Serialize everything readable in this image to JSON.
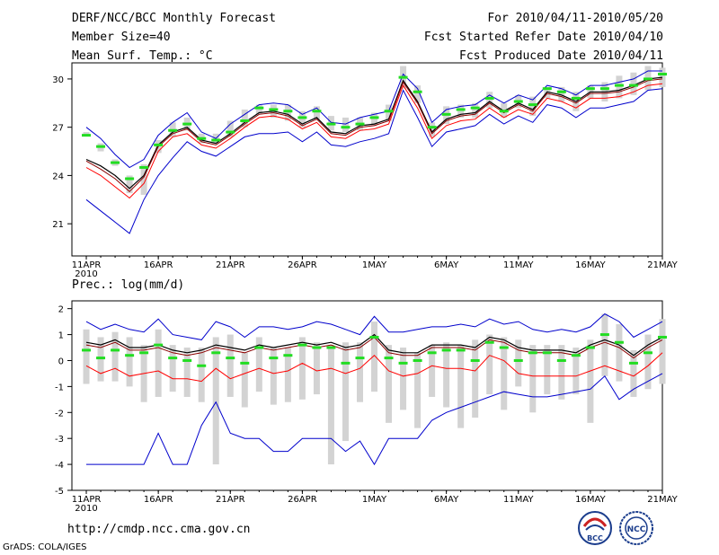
{
  "header": {
    "title": "DERF/NCC/BCC Monthly Forecast",
    "member_size": "Member Size=40",
    "variable": "Mean Surf. Temp.: °C",
    "period": "For 2010/04/11-2010/05/20",
    "fcst_started": "Fcst Started Refer Date 2010/04/10",
    "fcst_produced": "Fcst Produced Date 2010/04/11"
  },
  "precip_label": "Prec.: log(mm/d)",
  "url": "http://cmdp.ncc.cma.gov.cn",
  "credit": "GrADS: COLA/IGES",
  "logos": {
    "left": "BCC",
    "right": "NCC"
  },
  "colors": {
    "envelope": "#0000cc",
    "ensemble_mean": "#000000",
    "median": "#8b0000",
    "lower": "#ff0000",
    "marker": "#22dd22",
    "box": "#d3d3d3"
  },
  "chart_data": [
    {
      "type": "line",
      "title": "Mean Surf. Temp.",
      "ylabel": "°C",
      "ylim": [
        19,
        31
      ],
      "yticks": [
        21,
        24,
        27,
        30
      ],
      "xticks": [
        {
          "day": 0,
          "label": "11APR",
          "sub": "2010"
        },
        {
          "day": 5,
          "label": "16APR"
        },
        {
          "day": 10,
          "label": "21APR"
        },
        {
          "day": 15,
          "label": "26APR"
        },
        {
          "day": 20,
          "label": "1MAY"
        },
        {
          "day": 25,
          "label": "6MAY"
        },
        {
          "day": 30,
          "label": "11MAY"
        },
        {
          "day": 35,
          "label": "16MAY"
        },
        {
          "day": 40,
          "label": "21MAY"
        }
      ],
      "xlim": [
        -1,
        40
      ],
      "series": [
        {
          "name": "max",
          "values": [
            27.0,
            26.3,
            25.3,
            24.5,
            25.0,
            26.5,
            27.3,
            27.9,
            26.7,
            26.3,
            27.2,
            27.8,
            28.4,
            28.5,
            28.4,
            27.8,
            28.2,
            27.3,
            27.2,
            27.6,
            27.8,
            28.0,
            30.3,
            29.4,
            27.3,
            28.1,
            28.3,
            28.4,
            29.0,
            28.5,
            29.0,
            28.7,
            29.6,
            29.4,
            29.0,
            29.6,
            29.6,
            29.8,
            30.0,
            30.5,
            30.5
          ]
        },
        {
          "name": "mean",
          "values": [
            25.0,
            24.6,
            24.0,
            23.2,
            24.0,
            25.9,
            26.7,
            27.0,
            26.2,
            26.0,
            26.6,
            27.3,
            27.9,
            28.0,
            27.8,
            27.2,
            27.6,
            26.7,
            26.6,
            27.1,
            27.2,
            27.5,
            29.9,
            28.6,
            26.7,
            27.5,
            27.8,
            27.9,
            28.6,
            28.0,
            28.5,
            28.1,
            29.2,
            29.0,
            28.6,
            29.2,
            29.2,
            29.3,
            29.6,
            30.0,
            30.1
          ]
        },
        {
          "name": "median",
          "values": [
            24.9,
            24.4,
            23.8,
            23.0,
            23.9,
            25.8,
            26.6,
            26.9,
            26.1,
            25.9,
            26.5,
            27.2,
            27.8,
            27.9,
            27.7,
            27.1,
            27.5,
            26.6,
            26.5,
            27.0,
            27.1,
            27.4,
            29.8,
            28.5,
            26.6,
            27.4,
            27.7,
            27.8,
            28.5,
            27.9,
            28.4,
            28.0,
            29.1,
            28.9,
            28.5,
            29.1,
            29.1,
            29.2,
            29.5,
            29.9,
            30.0
          ]
        },
        {
          "name": "lower",
          "values": [
            24.5,
            24.0,
            23.3,
            22.6,
            23.5,
            25.5,
            26.4,
            26.6,
            25.9,
            25.7,
            26.3,
            27.0,
            27.6,
            27.7,
            27.5,
            26.9,
            27.3,
            26.4,
            26.3,
            26.8,
            26.9,
            27.2,
            29.6,
            28.2,
            26.3,
            27.1,
            27.4,
            27.5,
            28.2,
            27.6,
            28.1,
            27.8,
            28.8,
            28.6,
            28.2,
            28.8,
            28.8,
            28.9,
            29.2,
            29.6,
            29.7
          ]
        },
        {
          "name": "min",
          "values": [
            22.5,
            21.8,
            21.1,
            20.4,
            22.5,
            24.0,
            25.1,
            26.1,
            25.5,
            25.2,
            25.8,
            26.4,
            26.6,
            26.6,
            26.7,
            26.1,
            26.7,
            25.9,
            25.8,
            26.1,
            26.3,
            26.6,
            29.3,
            27.6,
            25.8,
            26.7,
            26.9,
            27.1,
            27.8,
            27.2,
            27.7,
            27.3,
            28.4,
            28.2,
            27.6,
            28.2,
            28.2,
            28.4,
            28.6,
            29.3,
            29.4
          ]
        },
        {
          "name": "markers",
          "values": [
            26.5,
            25.8,
            24.8,
            23.8,
            24.5,
            25.9,
            26.8,
            27.2,
            26.3,
            26.2,
            26.7,
            27.4,
            28.2,
            28.1,
            28.0,
            27.6,
            28.0,
            27.2,
            27.0,
            27.2,
            27.6,
            28.0,
            30.1,
            29.2,
            27.0,
            27.8,
            28.1,
            28.2,
            28.8,
            28.0,
            28.6,
            28.4,
            29.4,
            29.2,
            28.8,
            29.4,
            29.4,
            29.6,
            29.6,
            30.0,
            30.3
          ]
        }
      ],
      "boxes": [
        [
          26.5,
          26.7
        ],
        [
          25.5,
          26.0
        ],
        [
          24.6,
          25.0
        ],
        [
          22.9,
          24.0
        ],
        [
          22.8,
          24.7
        ],
        [
          25.4,
          26.2
        ],
        [
          26.4,
          27.3
        ],
        [
          26.8,
          27.6
        ],
        [
          26.0,
          26.6
        ],
        [
          26.0,
          26.6
        ],
        [
          26.4,
          27.4
        ],
        [
          27.0,
          28.1
        ],
        [
          27.8,
          28.4
        ],
        [
          27.6,
          28.4
        ],
        [
          27.4,
          28.4
        ],
        [
          27.0,
          28.0
        ],
        [
          27.5,
          28.3
        ],
        [
          26.8,
          27.7
        ],
        [
          26.7,
          27.6
        ],
        [
          26.8,
          27.6
        ],
        [
          27.1,
          27.9
        ],
        [
          27.4,
          28.4
        ],
        [
          29.4,
          30.8
        ],
        [
          28.5,
          29.6
        ],
        [
          26.4,
          27.3
        ],
        [
          27.2,
          28.3
        ],
        [
          27.6,
          28.4
        ],
        [
          27.6,
          28.5
        ],
        [
          28.2,
          29.2
        ],
        [
          27.6,
          28.5
        ],
        [
          28.2,
          29.0
        ],
        [
          27.7,
          28.9
        ],
        [
          28.8,
          29.5
        ],
        [
          28.6,
          29.5
        ],
        [
          28.0,
          29.2
        ],
        [
          28.8,
          29.6
        ],
        [
          28.6,
          29.8
        ],
        [
          28.8,
          30.2
        ],
        [
          29.0,
          30.4
        ],
        [
          29.3,
          30.8
        ],
        [
          29.5,
          30.7
        ]
      ]
    },
    {
      "type": "line",
      "title": "Prec.: log(mm/d)",
      "ylim": [
        -5,
        2.3
      ],
      "yticks": [
        -5,
        -4,
        -3,
        -2,
        -1,
        0,
        1,
        2
      ],
      "xticks": [
        {
          "day": 0,
          "label": "11APR",
          "sub": "2010"
        },
        {
          "day": 5,
          "label": "16APR"
        },
        {
          "day": 10,
          "label": "21APR"
        },
        {
          "day": 15,
          "label": "26APR"
        },
        {
          "day": 20,
          "label": "1MAY"
        },
        {
          "day": 25,
          "label": "6MAY"
        },
        {
          "day": 30,
          "label": "11MAY"
        },
        {
          "day": 35,
          "label": "16MAY"
        },
        {
          "day": 40,
          "label": "21MAY"
        }
      ],
      "xlim": [
        -1,
        40
      ],
      "series": [
        {
          "name": "max",
          "values": [
            1.5,
            1.2,
            1.4,
            1.2,
            1.1,
            1.6,
            1.0,
            0.9,
            0.8,
            1.5,
            1.3,
            0.9,
            1.3,
            1.3,
            1.2,
            1.3,
            1.5,
            1.4,
            1.2,
            1.0,
            1.7,
            1.1,
            1.1,
            1.2,
            1.3,
            1.3,
            1.4,
            1.3,
            1.6,
            1.4,
            1.5,
            1.2,
            1.1,
            1.2,
            1.1,
            1.3,
            1.8,
            1.5,
            0.9,
            1.2,
            1.5
          ]
        },
        {
          "name": "mean",
          "values": [
            0.7,
            0.6,
            0.8,
            0.5,
            0.5,
            0.6,
            0.4,
            0.3,
            0.4,
            0.6,
            0.5,
            0.4,
            0.6,
            0.5,
            0.6,
            0.7,
            0.6,
            0.7,
            0.5,
            0.6,
            1.0,
            0.4,
            0.3,
            0.3,
            0.6,
            0.6,
            0.6,
            0.5,
            0.9,
            0.8,
            0.5,
            0.4,
            0.4,
            0.4,
            0.3,
            0.6,
            0.8,
            0.6,
            0.2,
            0.6,
            0.9
          ]
        },
        {
          "name": "median",
          "values": [
            0.6,
            0.5,
            0.7,
            0.4,
            0.4,
            0.5,
            0.3,
            0.2,
            0.3,
            0.5,
            0.4,
            0.3,
            0.5,
            0.4,
            0.5,
            0.6,
            0.5,
            0.6,
            0.4,
            0.5,
            0.9,
            0.3,
            0.2,
            0.2,
            0.5,
            0.5,
            0.5,
            0.4,
            0.8,
            0.7,
            0.4,
            0.3,
            0.3,
            0.3,
            0.2,
            0.5,
            0.7,
            0.5,
            0.1,
            0.5,
            0.8
          ]
        },
        {
          "name": "lower",
          "values": [
            -0.2,
            -0.5,
            -0.3,
            -0.6,
            -0.5,
            -0.4,
            -0.7,
            -0.7,
            -0.8,
            -0.3,
            -0.7,
            -0.5,
            -0.3,
            -0.5,
            -0.4,
            -0.1,
            -0.4,
            -0.3,
            -0.5,
            -0.3,
            0.2,
            -0.4,
            -0.6,
            -0.5,
            -0.2,
            -0.3,
            -0.3,
            -0.4,
            0.2,
            0.0,
            -0.5,
            -0.6,
            -0.6,
            -0.6,
            -0.6,
            -0.4,
            -0.2,
            -0.4,
            -0.6,
            -0.2,
            0.3
          ]
        },
        {
          "name": "min",
          "values": [
            -4.0,
            -4.0,
            -4.0,
            -4.0,
            -4.0,
            -2.8,
            -4.0,
            -4.0,
            -2.5,
            -1.6,
            -2.8,
            -3.0,
            -3.0,
            -3.5,
            -3.5,
            -3.0,
            -3.0,
            -3.0,
            -3.5,
            -3.1,
            -4.0,
            -3.0,
            -3.0,
            -3.0,
            -2.3,
            -2.0,
            -1.8,
            -1.6,
            -1.4,
            -1.2,
            -1.3,
            -1.4,
            -1.4,
            -1.3,
            -1.2,
            -1.1,
            -0.6,
            -1.5,
            -1.1,
            -0.8,
            -0.5
          ]
        },
        {
          "name": "markers",
          "values": [
            0.4,
            0.1,
            0.4,
            0.2,
            0.3,
            0.6,
            0.1,
            0.0,
            -0.2,
            0.3,
            0.1,
            -0.1,
            0.5,
            0.1,
            0.2,
            0.6,
            0.5,
            0.5,
            -0.1,
            0.1,
            0.9,
            0.1,
            -0.1,
            0.0,
            0.3,
            0.4,
            0.4,
            0.0,
            0.7,
            0.5,
            0.0,
            0.3,
            0.3,
            0.0,
            0.2,
            0.5,
            1.0,
            0.7,
            -0.1,
            0.3,
            0.9
          ]
        }
      ],
      "boxes": [
        [
          -0.9,
          1.2
        ],
        [
          -0.8,
          0.9
        ],
        [
          -0.8,
          1.1
        ],
        [
          -1.0,
          0.9
        ],
        [
          -1.6,
          0.6
        ],
        [
          -1.4,
          1.2
        ],
        [
          -1.2,
          0.6
        ],
        [
          -1.4,
          0.5
        ],
        [
          -1.6,
          0.5
        ],
        [
          -4.0,
          0.9
        ],
        [
          -1.4,
          1.0
        ],
        [
          -1.8,
          0.3
        ],
        [
          -1.2,
          0.9
        ],
        [
          -1.7,
          0.5
        ],
        [
          -1.6,
          0.5
        ],
        [
          -1.5,
          0.9
        ],
        [
          -1.3,
          0.7
        ],
        [
          -4.0,
          0.6
        ],
        [
          -3.1,
          0.7
        ],
        [
          -1.6,
          0.7
        ],
        [
          -1.2,
          1.5
        ],
        [
          -2.4,
          0.6
        ],
        [
          -1.9,
          0.5
        ],
        [
          -2.6,
          0.3
        ],
        [
          -1.4,
          0.6
        ],
        [
          -1.8,
          0.7
        ],
        [
          -2.6,
          0.6
        ],
        [
          -2.2,
          0.8
        ],
        [
          -1.3,
          1.0
        ],
        [
          -1.9,
          0.9
        ],
        [
          -1.0,
          0.8
        ],
        [
          -2.0,
          0.6
        ],
        [
          -1.3,
          0.6
        ],
        [
          -1.5,
          0.6
        ],
        [
          -1.3,
          0.5
        ],
        [
          -2.4,
          0.8
        ],
        [
          -0.6,
          1.8
        ],
        [
          -0.8,
          1.4
        ],
        [
          -1.4,
          0.4
        ],
        [
          -1.1,
          1.0
        ],
        [
          -0.9,
          1.6
        ]
      ]
    }
  ]
}
